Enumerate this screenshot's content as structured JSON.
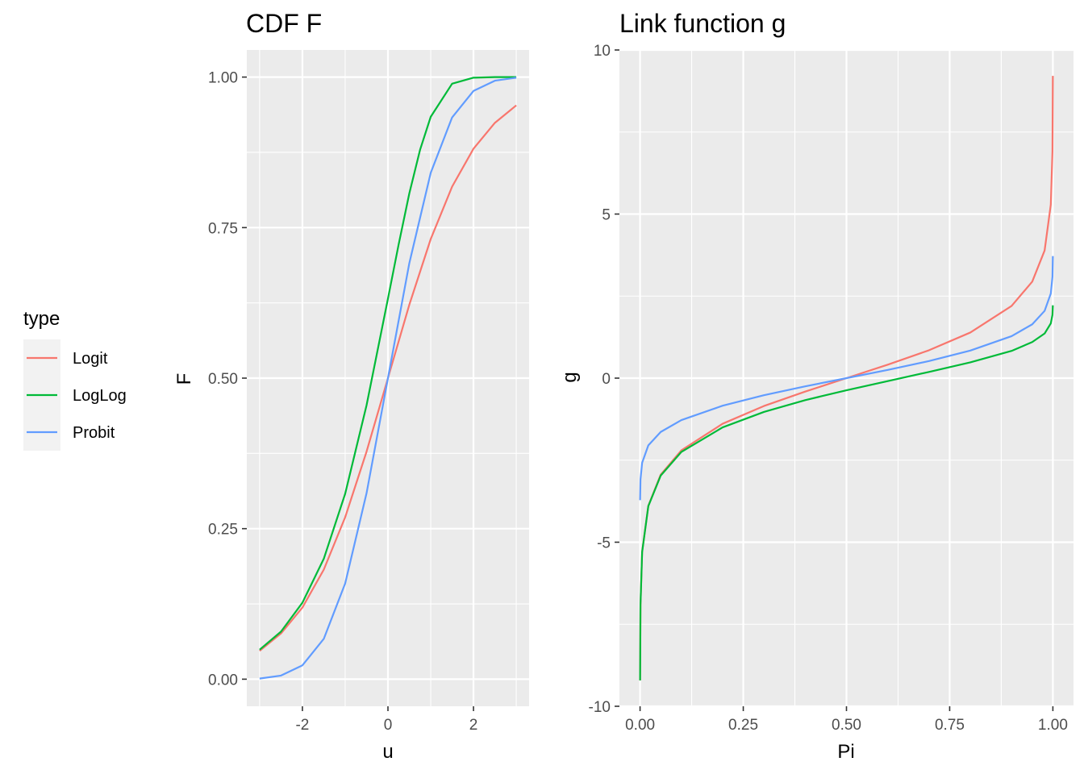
{
  "legend": {
    "title": "type",
    "entries": [
      {
        "label": "Logit",
        "color": "#F8766D"
      },
      {
        "label": "LogLog",
        "color": "#00BA38"
      },
      {
        "label": "Probit",
        "color": "#619CFF"
      }
    ]
  },
  "chart_data": [
    {
      "type": "line",
      "title": "CDF F",
      "xlabel": "u",
      "ylabel": "F",
      "xlim": [
        -3.3,
        3.3
      ],
      "ylim": [
        -0.045,
        1.045
      ],
      "x_ticks": [
        -2,
        0,
        2
      ],
      "x_tick_labels": [
        "-2",
        "0",
        "2"
      ],
      "y_ticks": [
        0,
        0.25,
        0.5,
        0.75,
        1.0
      ],
      "y_tick_labels": [
        "0.00",
        "0.25",
        "0.50",
        "0.75",
        "1.00"
      ],
      "x_minor": [
        -3,
        -1,
        1,
        3
      ],
      "y_minor": [
        0.125,
        0.375,
        0.625,
        0.875
      ],
      "series": [
        {
          "name": "Logit",
          "color": "#F8766D",
          "x": [
            -3,
            -2.5,
            -2,
            -1.5,
            -1,
            -0.5,
            0,
            0.5,
            1,
            1.5,
            2,
            2.5,
            3
          ],
          "y": [
            0.047,
            0.076,
            0.119,
            0.182,
            0.269,
            0.378,
            0.5,
            0.622,
            0.731,
            0.818,
            0.881,
            0.924,
            0.953
          ]
        },
        {
          "name": "LogLog",
          "color": "#00BA38",
          "x": [
            -3,
            -2.5,
            -2,
            -1.5,
            -1,
            -0.5,
            0,
            0.25,
            0.5,
            0.75,
            1,
            1.5,
            2,
            2.5,
            3
          ],
          "y": [
            0.049,
            0.079,
            0.127,
            0.2,
            0.308,
            0.455,
            0.632,
            0.722,
            0.807,
            0.879,
            0.934,
            0.989,
            0.999,
            1.0,
            1.0
          ]
        },
        {
          "name": "Probit",
          "color": "#619CFF",
          "x": [
            -3,
            -2.5,
            -2,
            -1.5,
            -1,
            -0.5,
            0,
            0.5,
            1,
            1.5,
            2,
            2.5,
            3
          ],
          "y": [
            0.001,
            0.006,
            0.023,
            0.067,
            0.159,
            0.309,
            0.5,
            0.691,
            0.841,
            0.933,
            0.977,
            0.994,
            0.999
          ]
        }
      ]
    },
    {
      "type": "line",
      "title": "Link function g",
      "xlabel": "Pi",
      "ylabel": "g",
      "xlim": [
        -0.05,
        1.05
      ],
      "ylim": [
        -10.0,
        10.0
      ],
      "x_ticks": [
        0,
        0.25,
        0.5,
        0.75,
        1.0
      ],
      "x_tick_labels": [
        "0.00",
        "0.25",
        "0.50",
        "0.75",
        "1.00"
      ],
      "y_ticks": [
        -10,
        -5,
        0,
        5,
        10
      ],
      "y_tick_labels": [
        "-10",
        "-5",
        "0",
        "5",
        "10"
      ],
      "x_minor": [
        0.125,
        0.375,
        0.625,
        0.875
      ],
      "y_minor": [
        -7.5,
        -2.5,
        2.5,
        7.5
      ],
      "series": [
        {
          "name": "Logit",
          "color": "#F8766D",
          "x": [
            0.0001,
            0.001,
            0.005,
            0.02,
            0.05,
            0.1,
            0.2,
            0.3,
            0.4,
            0.5,
            0.6,
            0.7,
            0.8,
            0.9,
            0.95,
            0.98,
            0.995,
            0.999,
            0.9999
          ],
          "y": [
            -9.21,
            -6.91,
            -5.29,
            -3.89,
            -2.94,
            -2.2,
            -1.39,
            -0.85,
            -0.41,
            0,
            0.41,
            0.85,
            1.39,
            2.2,
            2.94,
            3.89,
            5.29,
            6.91,
            9.21
          ]
        },
        {
          "name": "LogLog",
          "color": "#00BA38",
          "x": [
            0.0001,
            0.001,
            0.005,
            0.02,
            0.05,
            0.1,
            0.2,
            0.3,
            0.4,
            0.5,
            0.6,
            0.7,
            0.8,
            0.9,
            0.95,
            0.98,
            0.995,
            0.999,
            0.9999
          ],
          "y": [
            -9.21,
            -6.91,
            -5.3,
            -3.9,
            -2.97,
            -2.25,
            -1.5,
            -1.03,
            -0.67,
            -0.37,
            -0.09,
            0.19,
            0.48,
            0.83,
            1.1,
            1.36,
            1.67,
            1.93,
            2.22
          ]
        },
        {
          "name": "Probit",
          "color": "#619CFF",
          "x": [
            0.0001,
            0.001,
            0.005,
            0.02,
            0.05,
            0.1,
            0.2,
            0.3,
            0.4,
            0.5,
            0.6,
            0.7,
            0.8,
            0.9,
            0.95,
            0.98,
            0.995,
            0.999,
            0.9999
          ],
          "y": [
            -3.72,
            -3.09,
            -2.58,
            -2.05,
            -1.64,
            -1.28,
            -0.84,
            -0.52,
            -0.25,
            0,
            0.25,
            0.52,
            0.84,
            1.28,
            1.64,
            2.05,
            2.58,
            3.09,
            3.72
          ]
        }
      ]
    }
  ]
}
